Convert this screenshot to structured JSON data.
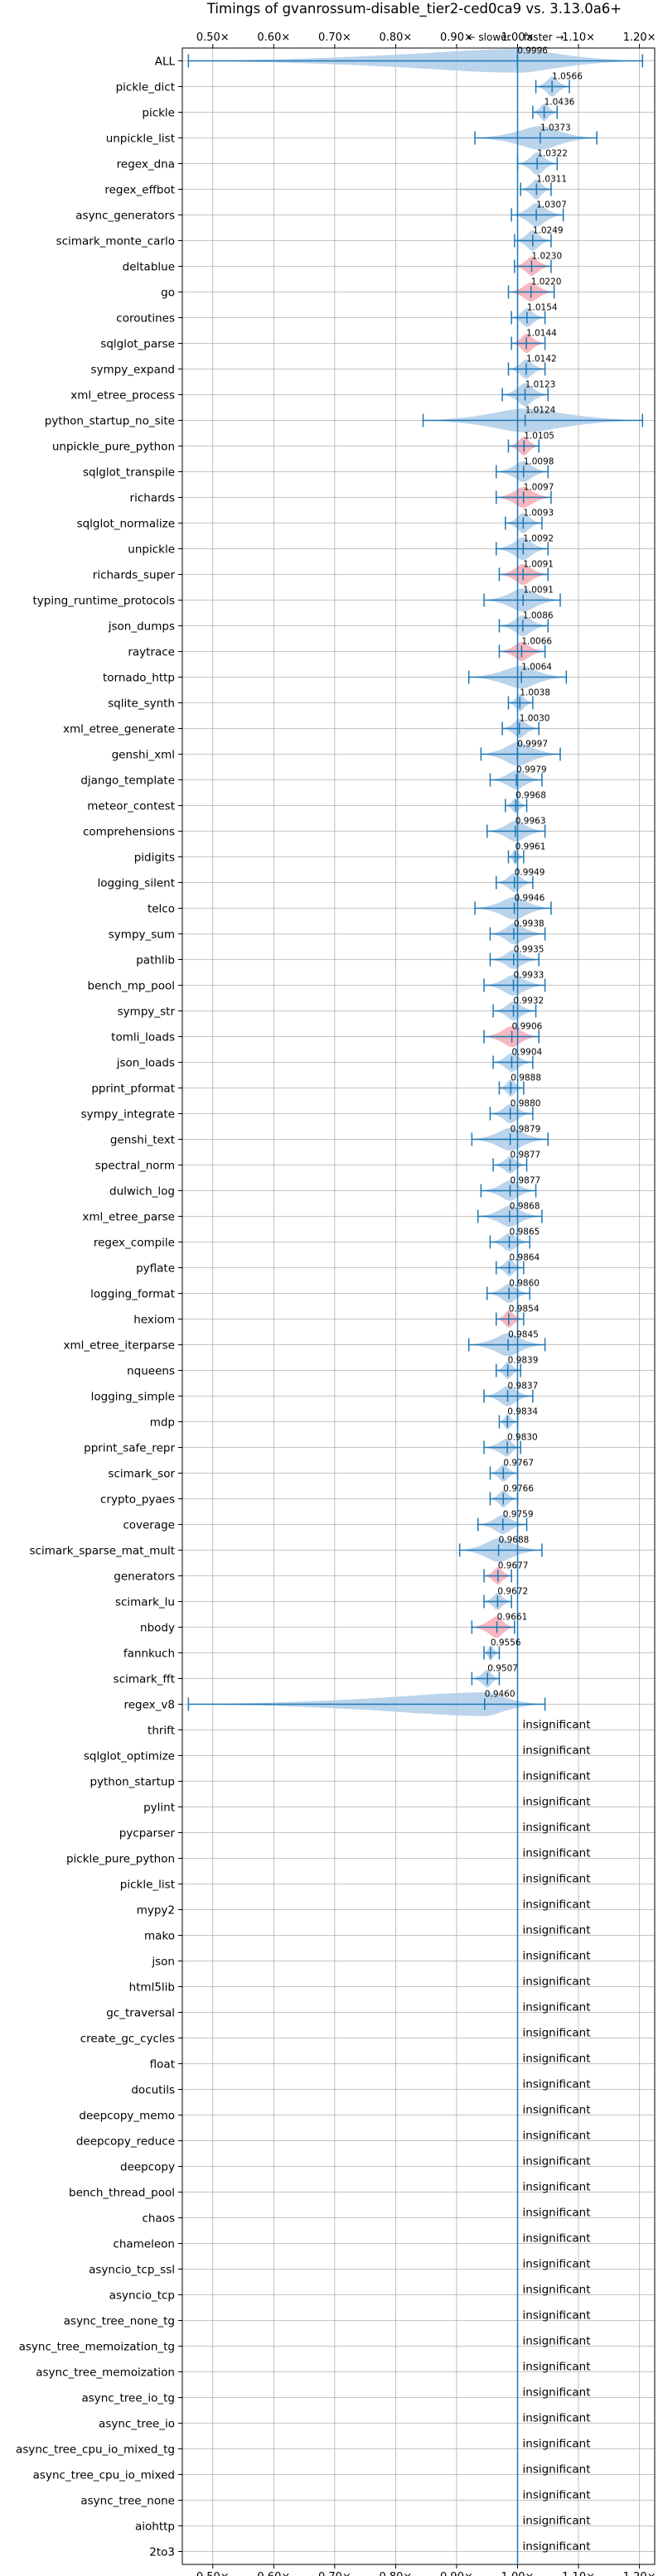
{
  "chart_data": {
    "type": "violin",
    "title": "Timings of gvanrossum-disable_tier2-ced0ca9 vs. 3.13.0a6+",
    "direction_annotation": "← slower    faster →",
    "xlim": [
      0.45,
      1.225
    ],
    "xticks": [
      0.5,
      0.6,
      0.7,
      0.8,
      0.9,
      1.0,
      1.1,
      1.2
    ],
    "xtick_labels": [
      "0.50×",
      "0.60×",
      "0.70×",
      "0.80×",
      "0.90×",
      "1.00×",
      "1.10×",
      "1.20×"
    ],
    "reference_line": 1.0,
    "grid": true,
    "insignificant_label": "insignificant",
    "colors": {
      "violin_normal": "#aecde8",
      "violin_highlight": "#f4aab4",
      "line": "#1f77b4",
      "grid": "#b0b0b0"
    },
    "benchmarks": [
      {
        "name": "ALL",
        "value": 0.9996,
        "label": "0.9996",
        "lo": 0.46,
        "hi": 1.205,
        "w": 0.055,
        "hl": false
      },
      {
        "name": "pickle_dict",
        "value": 1.0566,
        "label": "1.0566",
        "lo": 1.03,
        "hi": 1.085,
        "w": 0.028,
        "hl": false
      },
      {
        "name": "pickle",
        "value": 1.0436,
        "label": "1.0436",
        "lo": 1.025,
        "hi": 1.065,
        "w": 0.022,
        "hl": false
      },
      {
        "name": "unpickle_list",
        "value": 1.0373,
        "label": "1.0373",
        "lo": 0.93,
        "hi": 1.13,
        "w": 0.07,
        "hl": false
      },
      {
        "name": "regex_dna",
        "value": 1.0322,
        "label": "1.0322",
        "lo": 1.0,
        "hi": 1.065,
        "w": 0.035,
        "hl": false
      },
      {
        "name": "regex_effbot",
        "value": 1.0311,
        "label": "1.0311",
        "lo": 1.005,
        "hi": 1.055,
        "w": 0.028,
        "hl": false
      },
      {
        "name": "async_generators",
        "value": 1.0307,
        "label": "1.0307",
        "lo": 0.99,
        "hi": 1.075,
        "w": 0.04,
        "hl": false
      },
      {
        "name": "scimark_monte_carlo",
        "value": 1.0249,
        "label": "1.0249",
        "lo": 0.995,
        "hi": 1.055,
        "w": 0.03,
        "hl": false
      },
      {
        "name": "deltablue",
        "value": 1.023,
        "label": "1.0230",
        "lo": 0.995,
        "hi": 1.055,
        "w": 0.025,
        "hl": true
      },
      {
        "name": "go",
        "value": 1.022,
        "label": "1.0220",
        "lo": 0.985,
        "hi": 1.06,
        "w": 0.025,
        "hl": true
      },
      {
        "name": "coroutines",
        "value": 1.0154,
        "label": "1.0154",
        "lo": 0.99,
        "hi": 1.045,
        "w": 0.025,
        "hl": false
      },
      {
        "name": "sqlglot_parse",
        "value": 1.0144,
        "label": "1.0144",
        "lo": 0.99,
        "hi": 1.045,
        "w": 0.025,
        "hl": true
      },
      {
        "name": "sympy_expand",
        "value": 1.0142,
        "label": "1.0142",
        "lo": 0.985,
        "hi": 1.045,
        "w": 0.025,
        "hl": false
      },
      {
        "name": "xml_etree_process",
        "value": 1.0123,
        "label": "1.0123",
        "lo": 0.975,
        "hi": 1.05,
        "w": 0.035,
        "hl": false
      },
      {
        "name": "python_startup_no_site",
        "value": 1.0124,
        "label": "1.0124",
        "lo": 0.845,
        "hi": 1.205,
        "w": 0.08,
        "hl": false
      },
      {
        "name": "unpickle_pure_python",
        "value": 1.0105,
        "label": "1.0105",
        "lo": 0.985,
        "hi": 1.035,
        "w": 0.025,
        "hl": true
      },
      {
        "name": "sqlglot_transpile",
        "value": 1.0098,
        "label": "1.0098",
        "lo": 0.965,
        "hi": 1.05,
        "w": 0.03,
        "hl": false
      },
      {
        "name": "richards",
        "value": 1.0097,
        "label": "1.0097",
        "lo": 0.965,
        "hi": 1.055,
        "w": 0.03,
        "hl": true
      },
      {
        "name": "sqlglot_normalize",
        "value": 1.0093,
        "label": "1.0093",
        "lo": 0.98,
        "hi": 1.04,
        "w": 0.028,
        "hl": false
      },
      {
        "name": "unpickle",
        "value": 1.0092,
        "label": "1.0092",
        "lo": 0.965,
        "hi": 1.05,
        "w": 0.035,
        "hl": false
      },
      {
        "name": "richards_super",
        "value": 1.0091,
        "label": "1.0091",
        "lo": 0.97,
        "hi": 1.05,
        "w": 0.03,
        "hl": true
      },
      {
        "name": "typing_runtime_protocols",
        "value": 1.0091,
        "label": "1.0091",
        "lo": 0.945,
        "hi": 1.07,
        "w": 0.04,
        "hl": false
      },
      {
        "name": "json_dumps",
        "value": 1.0086,
        "label": "1.0086",
        "lo": 0.97,
        "hi": 1.05,
        "w": 0.03,
        "hl": false
      },
      {
        "name": "raytrace",
        "value": 1.0066,
        "label": "1.0066",
        "lo": 0.97,
        "hi": 1.045,
        "w": 0.025,
        "hl": true
      },
      {
        "name": "tornado_http",
        "value": 1.0064,
        "label": "1.0064",
        "lo": 0.92,
        "hi": 1.08,
        "w": 0.035,
        "hl": false
      },
      {
        "name": "sqlite_synth",
        "value": 1.0038,
        "label": "1.0038",
        "lo": 0.985,
        "hi": 1.025,
        "w": 0.02,
        "hl": false
      },
      {
        "name": "xml_etree_generate",
        "value": 1.003,
        "label": "1.0030",
        "lo": 0.975,
        "hi": 1.035,
        "w": 0.025,
        "hl": false
      },
      {
        "name": "genshi_xml",
        "value": 0.9997,
        "label": "0.9997",
        "lo": 0.94,
        "hi": 1.07,
        "w": 0.04,
        "hl": false
      },
      {
        "name": "django_template",
        "value": 0.9979,
        "label": "0.9979",
        "lo": 0.955,
        "hi": 1.04,
        "w": 0.025,
        "hl": false
      },
      {
        "name": "meteor_contest",
        "value": 0.9968,
        "label": "0.9968",
        "lo": 0.98,
        "hi": 1.015,
        "w": 0.015,
        "hl": false
      },
      {
        "name": "comprehensions",
        "value": 0.9963,
        "label": "0.9963",
        "lo": 0.95,
        "hi": 1.045,
        "w": 0.03,
        "hl": false
      },
      {
        "name": "pidigits",
        "value": 0.9961,
        "label": "0.9961",
        "lo": 0.985,
        "hi": 1.01,
        "w": 0.015,
        "hl": false
      },
      {
        "name": "logging_silent",
        "value": 0.9949,
        "label": "0.9949",
        "lo": 0.965,
        "hi": 1.025,
        "w": 0.025,
        "hl": false
      },
      {
        "name": "telco",
        "value": 0.9946,
        "label": "0.9946",
        "lo": 0.93,
        "hi": 1.055,
        "w": 0.035,
        "hl": false
      },
      {
        "name": "sympy_sum",
        "value": 0.9938,
        "label": "0.9938",
        "lo": 0.955,
        "hi": 1.045,
        "w": 0.03,
        "hl": false
      },
      {
        "name": "pathlib",
        "value": 0.9935,
        "label": "0.9935",
        "lo": 0.955,
        "hi": 1.035,
        "w": 0.025,
        "hl": false
      },
      {
        "name": "bench_mp_pool",
        "value": 0.9933,
        "label": "0.9933",
        "lo": 0.945,
        "hi": 1.045,
        "w": 0.03,
        "hl": false
      },
      {
        "name": "sympy_str",
        "value": 0.9932,
        "label": "0.9932",
        "lo": 0.96,
        "hi": 1.03,
        "w": 0.025,
        "hl": false
      },
      {
        "name": "tomli_loads",
        "value": 0.9906,
        "label": "0.9906",
        "lo": 0.945,
        "hi": 1.035,
        "w": 0.03,
        "hl": true
      },
      {
        "name": "json_loads",
        "value": 0.9904,
        "label": "0.9904",
        "lo": 0.96,
        "hi": 1.025,
        "w": 0.025,
        "hl": false
      },
      {
        "name": "pprint_pformat",
        "value": 0.9888,
        "label": "0.9888",
        "lo": 0.97,
        "hi": 1.01,
        "w": 0.02,
        "hl": false
      },
      {
        "name": "sympy_integrate",
        "value": 0.988,
        "label": "0.9880",
        "lo": 0.955,
        "hi": 1.025,
        "w": 0.025,
        "hl": false
      },
      {
        "name": "genshi_text",
        "value": 0.9879,
        "label": "0.9879",
        "lo": 0.925,
        "hi": 1.05,
        "w": 0.035,
        "hl": false
      },
      {
        "name": "spectral_norm",
        "value": 0.9877,
        "label": "0.9877",
        "lo": 0.96,
        "hi": 1.015,
        "w": 0.02,
        "hl": false
      },
      {
        "name": "dulwich_log",
        "value": 0.9877,
        "label": "0.9877",
        "lo": 0.94,
        "hi": 1.03,
        "w": 0.028,
        "hl": false
      },
      {
        "name": "xml_etree_parse",
        "value": 0.9868,
        "label": "0.9868",
        "lo": 0.935,
        "hi": 1.04,
        "w": 0.03,
        "hl": false
      },
      {
        "name": "regex_compile",
        "value": 0.9865,
        "label": "0.9865",
        "lo": 0.955,
        "hi": 1.02,
        "w": 0.022,
        "hl": false
      },
      {
        "name": "pyflate",
        "value": 0.9864,
        "label": "0.9864",
        "lo": 0.965,
        "hi": 1.01,
        "w": 0.02,
        "hl": false
      },
      {
        "name": "logging_format",
        "value": 0.986,
        "label": "0.9860",
        "lo": 0.95,
        "hi": 1.02,
        "w": 0.025,
        "hl": false
      },
      {
        "name": "hexiom",
        "value": 0.9854,
        "label": "0.9854",
        "lo": 0.965,
        "hi": 1.01,
        "w": 0.02,
        "hl": true
      },
      {
        "name": "xml_etree_iterparse",
        "value": 0.9845,
        "label": "0.9845",
        "lo": 0.92,
        "hi": 1.045,
        "w": 0.035,
        "hl": false
      },
      {
        "name": "nqueens",
        "value": 0.9839,
        "label": "0.9839",
        "lo": 0.965,
        "hi": 1.005,
        "w": 0.02,
        "hl": false
      },
      {
        "name": "logging_simple",
        "value": 0.9837,
        "label": "0.9837",
        "lo": 0.945,
        "hi": 1.025,
        "w": 0.028,
        "hl": false
      },
      {
        "name": "mdp",
        "value": 0.9834,
        "label": "0.9834",
        "lo": 0.97,
        "hi": 1.0,
        "w": 0.015,
        "hl": false
      },
      {
        "name": "pprint_safe_repr",
        "value": 0.983,
        "label": "0.9830",
        "lo": 0.945,
        "hi": 1.005,
        "w": 0.022,
        "hl": false
      },
      {
        "name": "scimark_sor",
        "value": 0.9767,
        "label": "0.9767",
        "lo": 0.955,
        "hi": 1.0,
        "w": 0.02,
        "hl": false
      },
      {
        "name": "crypto_pyaes",
        "value": 0.9766,
        "label": "0.9766",
        "lo": 0.955,
        "hi": 1.0,
        "w": 0.02,
        "hl": false
      },
      {
        "name": "coverage",
        "value": 0.9759,
        "label": "0.9759",
        "lo": 0.935,
        "hi": 1.015,
        "w": 0.025,
        "hl": false
      },
      {
        "name": "scimark_sparse_mat_mult",
        "value": 0.9688,
        "label": "0.9688",
        "lo": 0.905,
        "hi": 1.04,
        "w": 0.04,
        "hl": false
      },
      {
        "name": "generators",
        "value": 0.9677,
        "label": "0.9677",
        "lo": 0.945,
        "hi": 0.99,
        "w": 0.02,
        "hl": true
      },
      {
        "name": "scimark_lu",
        "value": 0.9672,
        "label": "0.9672",
        "lo": 0.945,
        "hi": 0.99,
        "w": 0.02,
        "hl": false
      },
      {
        "name": "nbody",
        "value": 0.9661,
        "label": "0.9661",
        "lo": 0.925,
        "hi": 0.995,
        "w": 0.032,
        "hl": true
      },
      {
        "name": "fannkuch",
        "value": 0.9556,
        "label": "0.9556",
        "lo": 0.945,
        "hi": 0.97,
        "w": 0.015,
        "hl": false
      },
      {
        "name": "scimark_fft",
        "value": 0.9507,
        "label": "0.9507",
        "lo": 0.925,
        "hi": 0.97,
        "w": 0.022,
        "hl": false
      },
      {
        "name": "regex_v8",
        "value": 0.946,
        "label": "0.9460",
        "lo": 0.46,
        "hi": 1.045,
        "w": 0.05,
        "hl": false
      },
      {
        "name": "thrift",
        "value": null,
        "label": null
      },
      {
        "name": "sqlglot_optimize",
        "value": null,
        "label": null
      },
      {
        "name": "python_startup",
        "value": null,
        "label": null
      },
      {
        "name": "pylint",
        "value": null,
        "label": null
      },
      {
        "name": "pycparser",
        "value": null,
        "label": null
      },
      {
        "name": "pickle_pure_python",
        "value": null,
        "label": null
      },
      {
        "name": "pickle_list",
        "value": null,
        "label": null
      },
      {
        "name": "mypy2",
        "value": null,
        "label": null
      },
      {
        "name": "mako",
        "value": null,
        "label": null
      },
      {
        "name": "json",
        "value": null,
        "label": null
      },
      {
        "name": "html5lib",
        "value": null,
        "label": null
      },
      {
        "name": "gc_traversal",
        "value": null,
        "label": null
      },
      {
        "name": "create_gc_cycles",
        "value": null,
        "label": null
      },
      {
        "name": "float",
        "value": null,
        "label": null
      },
      {
        "name": "docutils",
        "value": null,
        "label": null
      },
      {
        "name": "deepcopy_memo",
        "value": null,
        "label": null
      },
      {
        "name": "deepcopy_reduce",
        "value": null,
        "label": null
      },
      {
        "name": "deepcopy",
        "value": null,
        "label": null
      },
      {
        "name": "bench_thread_pool",
        "value": null,
        "label": null
      },
      {
        "name": "chaos",
        "value": null,
        "label": null
      },
      {
        "name": "chameleon",
        "value": null,
        "label": null
      },
      {
        "name": "asyncio_tcp_ssl",
        "value": null,
        "label": null
      },
      {
        "name": "asyncio_tcp",
        "value": null,
        "label": null
      },
      {
        "name": "async_tree_none_tg",
        "value": null,
        "label": null
      },
      {
        "name": "async_tree_memoization_tg",
        "value": null,
        "label": null
      },
      {
        "name": "async_tree_memoization",
        "value": null,
        "label": null
      },
      {
        "name": "async_tree_io_tg",
        "value": null,
        "label": null
      },
      {
        "name": "async_tree_io",
        "value": null,
        "label": null
      },
      {
        "name": "async_tree_cpu_io_mixed_tg",
        "value": null,
        "label": null
      },
      {
        "name": "async_tree_cpu_io_mixed",
        "value": null,
        "label": null
      },
      {
        "name": "async_tree_none",
        "value": null,
        "label": null
      },
      {
        "name": "aiohttp",
        "value": null,
        "label": null
      },
      {
        "name": "2to3",
        "value": null,
        "label": null
      }
    ]
  }
}
